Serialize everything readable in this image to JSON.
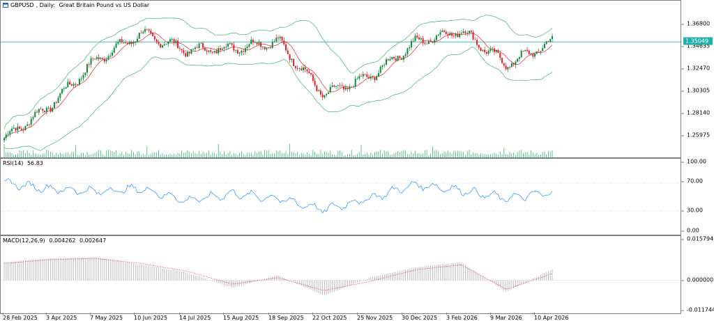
{
  "symbol": "GBPUSD",
  "timeframe": "Daily:",
  "description": "Great Britain Pound vs US Dollar",
  "price_axis": [
    "1.36800",
    "1.34635",
    "1.32470",
    "1.30305",
    "1.28140",
    "1.25975"
  ],
  "current_price": "1.35049",
  "rsi": {
    "title": "RSI(14)",
    "value": "56.83",
    "levels": [
      "100.00",
      "70.00",
      "30.00",
      "0.00"
    ]
  },
  "macd": {
    "title": "MACD(12,26,9)",
    "main": "0.004262",
    "signal": "0.002647",
    "levels": [
      "0.015794",
      "0.000000",
      "-0.011744"
    ]
  },
  "time_axis": [
    "28 Feb 2025",
    "3 Apr 2025",
    "7 May 2025",
    "10 Jun 2025",
    "14 Jul 2025",
    "15 Aug 2025",
    "18 Sep 2025",
    "22 Oct 2025",
    "25 Nov 2025",
    "30 Dec 2025",
    "3 Feb 2026",
    "9 Mar 2026",
    "10 Apr 2026"
  ],
  "colors": {
    "bull": "#0a8a3a",
    "bear": "#e0202a",
    "rsi_line": "#1e90ff",
    "bands": "#3cb371",
    "ma": "#e8202a",
    "price_line": "#20b2aa",
    "macd_hist": "#b0b0b0",
    "macd_signal": "#e8202a"
  },
  "chart_data": [
    {
      "type": "candlestick",
      "title": "GBPUSD, Daily: Great Britain Pound vs US Dollar",
      "x": [
        "28 Feb 2025",
        "3 Apr 2025",
        "7 May 2025",
        "10 Jun 2025",
        "14 Jul 2025",
        "15 Aug 2025",
        "18 Sep 2025",
        "22 Oct 2025",
        "25 Nov 2025",
        "30 Dec 2025",
        "3 Feb 2026",
        "9 Mar 2026",
        "10 Apr 2026"
      ],
      "close": [
        1.264,
        1.293,
        1.334,
        1.358,
        1.343,
        1.345,
        1.351,
        1.303,
        1.319,
        1.35,
        1.361,
        1.33,
        1.3505
      ],
      "ylim": [
        1.248,
        1.385
      ],
      "overlays": [
        "Bollinger Bands",
        "Moving Average"
      ],
      "volumes": true
    },
    {
      "type": "line",
      "title": "RSI(14) 56.83",
      "x": [
        "28 Feb 2025",
        "3 Apr 2025",
        "7 May 2025",
        "10 Jun 2025",
        "14 Jul 2025",
        "15 Aug 2025",
        "18 Sep 2025",
        "22 Oct 2025",
        "25 Nov 2025",
        "30 Dec 2025",
        "3 Feb 2026",
        "9 Mar 2026",
        "10 Apr 2026"
      ],
      "values": [
        70,
        62,
        58,
        62,
        45,
        55,
        48,
        32,
        48,
        68,
        60,
        48,
        57
      ],
      "ylim": [
        0,
        100
      ],
      "levels": [
        70,
        30
      ]
    },
    {
      "type": "histogram",
      "title": "MACD(12,26,9) 0.004262 0.002647",
      "x": [
        "28 Feb 2025",
        "3 Apr 2025",
        "7 May 2025",
        "10 Jun 2025",
        "14 Jul 2025",
        "15 Aug 2025",
        "18 Sep 2025",
        "22 Oct 2025",
        "25 Nov 2025",
        "30 Dec 2025",
        "3 Feb 2026",
        "9 Mar 2026",
        "10 Apr 2026"
      ],
      "main": [
        0.007,
        0.0085,
        0.009,
        0.006,
        0.003,
        -0.003,
        0.002,
        -0.006,
        0.001,
        0.005,
        0.007,
        -0.0045,
        0.0043
      ],
      "signal": [
        0.0065,
        0.008,
        0.0085,
        0.0065,
        0.0035,
        -0.0015,
        0.001,
        -0.004,
        -0.0005,
        0.004,
        0.006,
        -0.0035,
        0.0026
      ],
      "ylim": [
        -0.011744,
        0.015794
      ]
    }
  ]
}
